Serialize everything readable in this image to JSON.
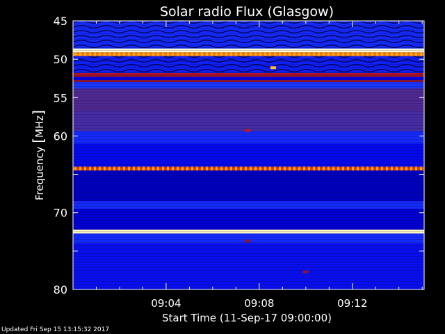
{
  "chart_data": {
    "type": "heatmap",
    "title": "Solar radio Flux (Glasgow)",
    "xlabel": "Start Time (11-Sep-17 09:00:00)",
    "ylabel_text": "Frequency ",
    "ylabel_unit": "MHz",
    "ylabel_open": "[",
    "ylabel_close": "]",
    "y_inverted": true,
    "ylim": [
      45,
      80
    ],
    "xlim": [
      "09:00:00",
      "09:15:05"
    ],
    "y_ticks": [
      45,
      50,
      55,
      60,
      65,
      70,
      75,
      80
    ],
    "y_tick_labels": [
      "45",
      "50",
      "55",
      "60",
      "",
      "70",
      "",
      "80"
    ],
    "x_ticks": [
      "09:04",
      "09:08",
      "09:12"
    ],
    "x_ticks_minutes": [
      4,
      8,
      12
    ],
    "x_minor_minutes": [
      1,
      2,
      3,
      5,
      6,
      7,
      9,
      10,
      11,
      13,
      14,
      15
    ],
    "colormap": [
      "#000000",
      "#00007a",
      "#0000e6",
      "#1e3cff",
      "#50288c",
      "#8c1430",
      "#d21414",
      "#ff6a00",
      "#ffe650",
      "#ffffff"
    ],
    "bands": [
      {
        "from": 45.0,
        "to": 48.6,
        "level": 0.3,
        "texture": "swirl"
      },
      {
        "from": 48.6,
        "to": 49.1,
        "level": 0.97
      },
      {
        "from": 49.1,
        "to": 49.6,
        "level": 0.8,
        "texture": "ticks"
      },
      {
        "from": 49.6,
        "to": 51.8,
        "level": 0.28,
        "texture": "swirl"
      },
      {
        "from": 51.8,
        "to": 52.3,
        "level": 0.6
      },
      {
        "from": 52.3,
        "to": 52.7,
        "level": 0.22
      },
      {
        "from": 52.7,
        "to": 53.0,
        "level": 0.55
      },
      {
        "from": 53.0,
        "to": 53.8,
        "level": 0.32
      },
      {
        "from": 53.8,
        "to": 56.8,
        "level": 0.44
      },
      {
        "from": 56.8,
        "to": 59.4,
        "level": 0.42
      },
      {
        "from": 59.4,
        "to": 61.0,
        "level": 0.3
      },
      {
        "from": 61.0,
        "to": 64.0,
        "level": 0.24
      },
      {
        "from": 64.0,
        "to": 64.5,
        "level": 0.72,
        "texture": "ticks"
      },
      {
        "from": 64.5,
        "to": 68.5,
        "level": 0.18
      },
      {
        "from": 68.5,
        "to": 69.5,
        "level": 0.3
      },
      {
        "from": 69.5,
        "to": 72.2,
        "level": 0.2
      },
      {
        "from": 72.2,
        "to": 72.7,
        "level": 0.96
      },
      {
        "from": 72.7,
        "to": 74.0,
        "level": 0.3
      },
      {
        "from": 74.0,
        "to": 80.0,
        "level": 0.25
      }
    ],
    "bursts": [
      {
        "time_min": 8.6,
        "freq": 51.1,
        "level": 0.85
      },
      {
        "time_min": 7.5,
        "freq": 59.3,
        "level": 0.65
      },
      {
        "time_min": 7.5,
        "freq": 73.7,
        "level": 0.55
      },
      {
        "time_min": 10.0,
        "freq": 77.7,
        "level": 0.55
      }
    ]
  },
  "footer": {
    "updated": "Updated Fri Sep 15 13:15:32 2017"
  }
}
